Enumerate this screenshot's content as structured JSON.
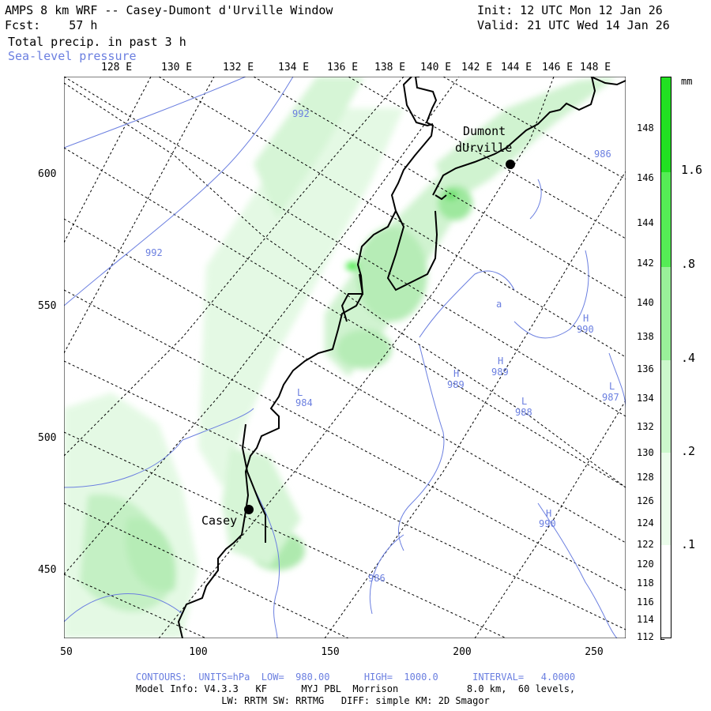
{
  "header": {
    "title_line": "AMPS 8 km WRF -- Casey-Dumont d'Urville Window",
    "fcst_line": "Fcst:    57 h",
    "init_line": "Init: 12 UTC Mon 12 Jan 26",
    "valid_line": "Valid: 21 UTC Wed 14 Jan 26",
    "field1": "Total precip. in past 3 h",
    "field2": "Sea-level pressure"
  },
  "top_lon_labels": [
    "128 E",
    "130 E",
    "132 E",
    "134 E",
    "136 E",
    "138 E",
    "140 E",
    "142 E",
    "144 E",
    "146 E",
    "148 E"
  ],
  "right_lon_labels": [
    "148 E",
    "146 E",
    "144 E",
    "142 E",
    "140 E",
    "138 E",
    "136 E",
    "134 E",
    "132 E",
    "130 E",
    "128 E",
    "126 E",
    "124 E",
    "122 E",
    "120 E",
    "118 E",
    "116 E",
    "114 E",
    "112 E"
  ],
  "x_ticks": [
    "50",
    "100",
    "150",
    "200",
    "250"
  ],
  "y_ticks": [
    "600",
    "550",
    "500",
    "450"
  ],
  "places": {
    "dumont_label1": "Dumont",
    "dumont_label2": "dUrville",
    "casey_label": "Casey"
  },
  "pressure_labels": [
    "992",
    "992",
    "984",
    "986",
    "988",
    "989",
    "989",
    "990",
    "990",
    "987",
    "986",
    "L",
    "L",
    "L",
    "H",
    "H",
    "H",
    "H",
    "a"
  ],
  "colorbar": {
    "unit": "mm",
    "labels": [
      "1.6",
      ".8",
      ".4",
      ".2",
      ".1"
    ],
    "colors": [
      "#22e022",
      "#55ec55",
      "#99f099",
      "#ccf8cc",
      "#eafcea",
      "#ffffff"
    ]
  },
  "footer": {
    "contours_line": "CONTOURS:  UNITS=hPa  LOW=  980.00      HIGH=  1000.0      INTERVAL=   4.0000",
    "model_line": "Model Info: V4.3.3   KF      MYJ PBL  Morrison            8.0 km,  60 levels,",
    "physics_line": "LW: RRTM SW: RRTMG   DIFF: simple KM: 2D Smagor"
  },
  "colors": {
    "pressure": "#6b7fe0",
    "precip": "#66dd66",
    "coast": "#000000"
  }
}
